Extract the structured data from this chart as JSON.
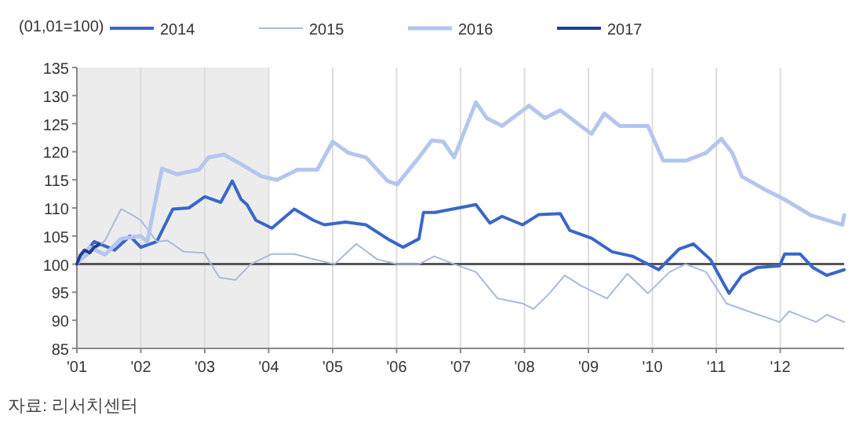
{
  "chart_data": {
    "type": "line",
    "ylabel": "(01,01=100)",
    "annotations": [
      "자료: 리서치센터"
    ],
    "xlim": [
      1,
      13
    ],
    "xticks": [
      {
        "value": 1,
        "label": "'01"
      },
      {
        "value": 2,
        "label": "'02"
      },
      {
        "value": 3,
        "label": "'03"
      },
      {
        "value": 4,
        "label": "'04"
      },
      {
        "value": 5,
        "label": "'05"
      },
      {
        "value": 6,
        "label": "'06"
      },
      {
        "value": 7,
        "label": "'07"
      },
      {
        "value": 8,
        "label": "'08"
      },
      {
        "value": 9,
        "label": "'09"
      },
      {
        "value": 10,
        "label": "'10"
      },
      {
        "value": 11,
        "label": "'11"
      },
      {
        "value": 12,
        "label": "'12"
      }
    ],
    "ylim": [
      85,
      135
    ],
    "yticks": [
      85,
      90,
      95,
      100,
      105,
      110,
      115,
      120,
      125,
      130,
      135
    ],
    "grid": "x",
    "legend": "top",
    "marker": "none",
    "line_style": "solid",
    "ref_lines": [
      {
        "axis": "y",
        "value": 100,
        "color": "#555555"
      }
    ],
    "bands": [
      {
        "axis": "x",
        "from": 1,
        "to": 4,
        "color": "#ececec"
      }
    ],
    "series": [
      {
        "name": "2014",
        "color": "#3a66c8",
        "x": [
          1,
          1.27,
          1.59,
          1.83,
          2.0,
          2.25,
          2.5,
          2.75,
          3.0,
          3.25,
          3.43,
          3.57,
          3.66,
          3.8,
          4.05,
          4.4,
          4.7,
          4.87,
          5.2,
          5.52,
          5.86,
          6.1,
          6.35,
          6.42,
          6.6,
          7.24,
          7.46,
          7.65,
          7.97,
          8.22,
          8.56,
          8.71,
          9.05,
          9.37,
          9.69,
          10.1,
          10.42,
          10.64,
          10.91,
          11.13,
          11.2,
          11.4,
          11.64,
          11.99,
          12.07,
          12.31,
          12.51,
          12.73,
          13
        ],
        "values": [
          100,
          104,
          102.5,
          105,
          103,
          104,
          109.8,
          110,
          112,
          111,
          114.8,
          111.5,
          110.6,
          107.8,
          106.4,
          109.8,
          107.8,
          107,
          107.5,
          107,
          104.5,
          103,
          104.5,
          109.2,
          109.2,
          110.6,
          107.3,
          108.5,
          107,
          108.8,
          109,
          106,
          104.6,
          102.2,
          101.4,
          99,
          102.7,
          103.6,
          100.8,
          96.2,
          94.8,
          98,
          99.4,
          99.7,
          101.8,
          101.8,
          99.4,
          98,
          99
        ]
      },
      {
        "name": "2015",
        "color": "#a9b9dc",
        "x": [
          1,
          1.44,
          1.69,
          1.83,
          2.0,
          2.25,
          2.42,
          2.67,
          2.99,
          3.23,
          3.48,
          3.72,
          4.05,
          4.4,
          4.7,
          5.03,
          5.37,
          5.69,
          6.01,
          6.35,
          6.59,
          6.9,
          7.24,
          7.58,
          7.97,
          8.14,
          8.39,
          8.63,
          8.88,
          9.29,
          9.61,
          9.93,
          10.27,
          10.52,
          10.84,
          11.16,
          11.5,
          11.99,
          12.14,
          12.56,
          12.73,
          13
        ],
        "values": [
          100,
          104.2,
          109.8,
          109,
          107.8,
          104,
          104.2,
          102.2,
          102,
          97.6,
          97.2,
          100,
          101.8,
          101.8,
          100.9,
          100,
          103.6,
          100.9,
          100,
          100,
          101.4,
          100,
          98.6,
          93.9,
          93,
          92,
          94.8,
          98,
          96.2,
          93.9,
          98.3,
          94.8,
          98.6,
          100,
          98.6,
          93,
          91.6,
          89.7,
          91.6,
          89.7,
          91,
          89.7
        ]
      },
      {
        "name": "2016",
        "color": "#b3c6ee",
        "x": [
          1,
          1.2,
          1.44,
          1.69,
          2.0,
          2.1,
          2.33,
          2.57,
          2.91,
          3.06,
          3.3,
          3.55,
          3.89,
          4.13,
          4.45,
          4.76,
          5.0,
          5.25,
          5.52,
          5.86,
          6.01,
          6.35,
          6.55,
          6.73,
          6.9,
          7.24,
          7.41,
          7.65,
          8.07,
          8.32,
          8.56,
          8.88,
          9.05,
          9.25,
          9.49,
          9.93,
          10.17,
          10.52,
          10.84,
          11.08,
          11.25,
          11.4,
          11.74,
          12.07,
          12.48,
          12.97,
          13
        ],
        "values": [
          100,
          103,
          101.7,
          104.5,
          105,
          104,
          117,
          116,
          116.8,
          119,
          119.5,
          117.9,
          115.6,
          115,
          116.8,
          116.8,
          121.8,
          119.8,
          119,
          114.8,
          114.2,
          119,
          122,
          121.8,
          119,
          128.8,
          126,
          124.6,
          128.2,
          126,
          127.4,
          124.6,
          123.2,
          126.8,
          124.6,
          124.6,
          118.4,
          118.4,
          119.8,
          122.3,
          119.8,
          115.6,
          113.4,
          111.5,
          108.7,
          107,
          108.7
        ]
      },
      {
        "name": "2017",
        "color": "#1f3c96",
        "x": [
          1,
          1.05,
          1.12,
          1.2,
          1.27,
          1.35
        ],
        "values": [
          100,
          101.5,
          102.5,
          102,
          103,
          103.5
        ]
      }
    ]
  }
}
